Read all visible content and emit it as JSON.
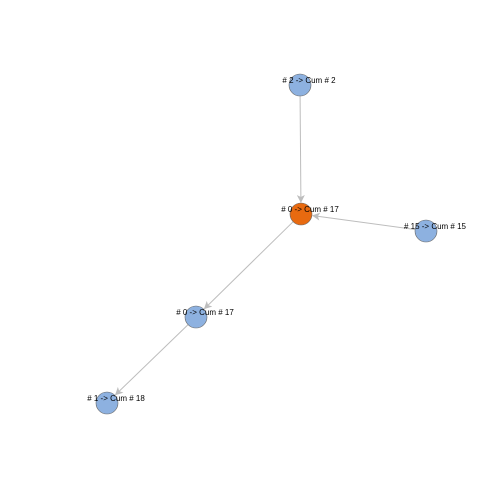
{
  "colors": {
    "node_default": "#8db1e0",
    "node_highlight": "#e86a10",
    "edge": "#bdbdbd"
  },
  "nodes": [
    {
      "id": "n2",
      "label": "# 2 -> Cum # 2",
      "highlight": false
    },
    {
      "id": "n0a",
      "label": "# 0 -> Cum # 17",
      "highlight": true
    },
    {
      "id": "n15",
      "label": "# 15 -> Cum # 15",
      "highlight": false
    },
    {
      "id": "n0b",
      "label": "# 0 -> Cum # 17",
      "highlight": false
    },
    {
      "id": "n1",
      "label": "# 1 -> Cum # 18",
      "highlight": false
    }
  ],
  "edges": [
    {
      "from": "n2",
      "to": "n0a"
    },
    {
      "from": "n15",
      "to": "n0a"
    },
    {
      "from": "n0a",
      "to": "n0b"
    },
    {
      "from": "n0b",
      "to": "n1"
    }
  ]
}
